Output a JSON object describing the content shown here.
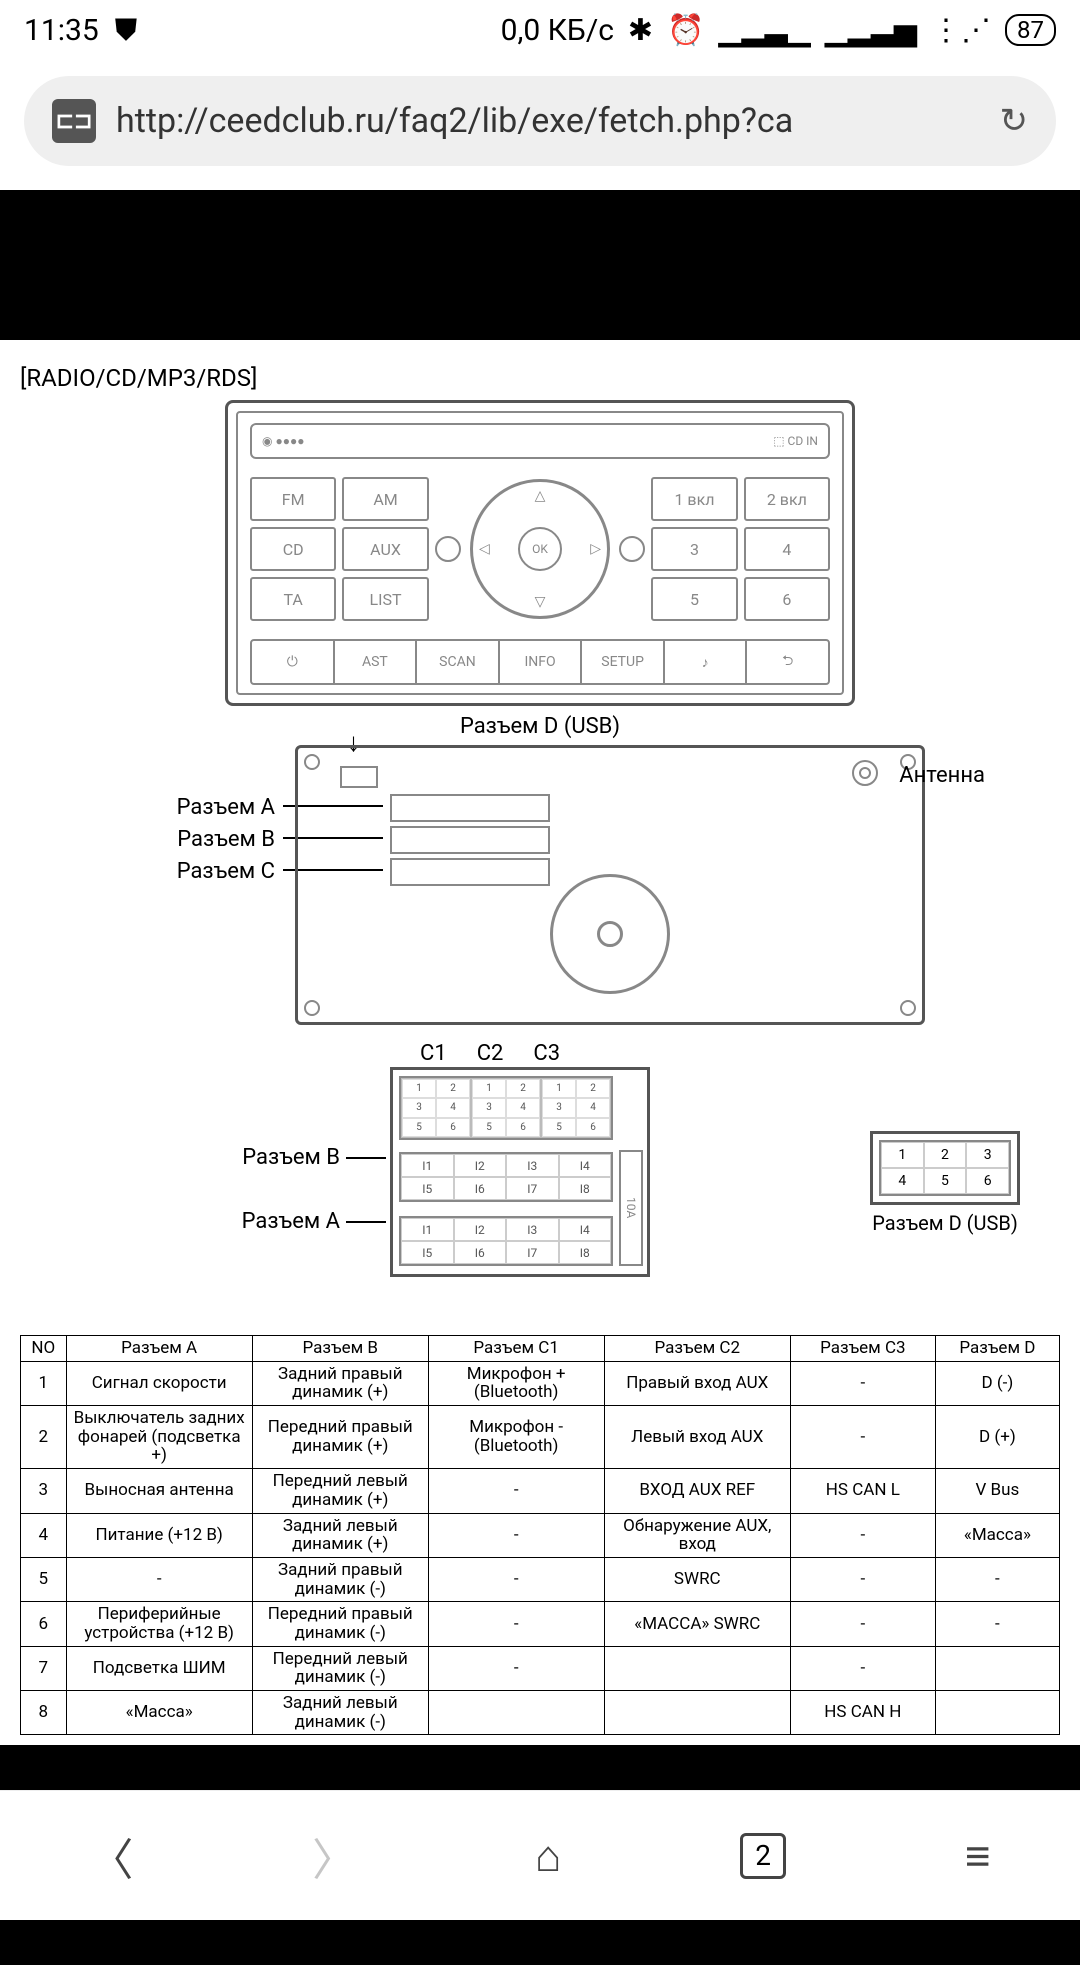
{
  "status": {
    "time": "11:35",
    "data_rate": "0,0 КБ/с",
    "battery": "87"
  },
  "url_bar": {
    "url": "http://ceedclub.ru/faq2/lib/exe/fetch.php?ca",
    "site_badge": "⊏⊐"
  },
  "doc": {
    "title": "[RADIO/CD/MP3/RDS]",
    "front_buttons_left": [
      "FM",
      "AM",
      "CD",
      "AUX",
      "TA",
      "LIST"
    ],
    "front_buttons_right": [
      "1 вкл",
      "2 вкл",
      "3",
      "4",
      "5",
      "6"
    ],
    "front_center": "OK",
    "front_bottom": [
      "⏻",
      "AST",
      "SCAN",
      "INFO",
      "SETUP",
      "♪",
      "⮌"
    ],
    "cd_left": "◉ ●●●●",
    "cd_right": "⬚ CD IN",
    "label_conn_d": "Разъем D (USB)",
    "label_conn_a": "Разъем A",
    "label_conn_b": "Разъем B",
    "label_conn_c": "Разъем C",
    "label_antenna": "Антенна",
    "c_headers": [
      "C1",
      "C2",
      "C3"
    ],
    "pin_b_label": "Разъем B",
    "pin_a_label": "Разъем A",
    "pins_b": [
      "I1",
      "I2",
      "I3",
      "I4",
      "I5",
      "I6",
      "I7",
      "I8"
    ],
    "pins_a": [
      "I1",
      "I2",
      "I3",
      "I4",
      "I5",
      "I6",
      "I7",
      "I8"
    ],
    "fuse": "10A",
    "usb_label": "Разъем D (USB)",
    "usb_pins": [
      "1",
      "2",
      "3",
      "4",
      "5",
      "6"
    ]
  },
  "table": {
    "headers": [
      "NO",
      "Разъем A",
      "Разъем B",
      "Разъем C1",
      "Разъем C2",
      "Разъем C3",
      "Разъем D"
    ],
    "rows": [
      [
        "1",
        "Сигнал скорости",
        "Задний правый динамик (+)",
        "Микрофон + (Bluetooth)",
        "Правый вход AUX",
        "-",
        "D (-)"
      ],
      [
        "2",
        "Выключатель задних фонарей (подсветка +)",
        "Передний правый динамик (+)",
        "Микрофон - (Bluetooth)",
        "Левый вход AUX",
        "-",
        "D (+)"
      ],
      [
        "3",
        "Выносная антенна",
        "Передний левый динамик (+)",
        "-",
        "ВХОД AUX REF",
        "HS CAN L",
        "V Bus"
      ],
      [
        "4",
        "Питание (+12 В)",
        "Задний левый динамик (+)",
        "-",
        "Обнаружение AUX, вход",
        "-",
        "«Масса»"
      ],
      [
        "5",
        "-",
        "Задний правый динамик (-)",
        "-",
        "SWRC",
        "-",
        "-"
      ],
      [
        "6",
        "Периферийные устройства (+12 В)",
        "Передний правый динамик (-)",
        "-",
        "«МАССА» SWRC",
        "-",
        "-"
      ],
      [
        "7",
        "Подсветка ШИМ",
        "Передний левый динамик (-)",
        "-",
        "",
        "-",
        ""
      ],
      [
        "8",
        "«Масса»",
        "Задний левый динамик (-)",
        "",
        "",
        "HS CAN H",
        ""
      ]
    ]
  },
  "nav": {
    "tab_count": "2"
  }
}
